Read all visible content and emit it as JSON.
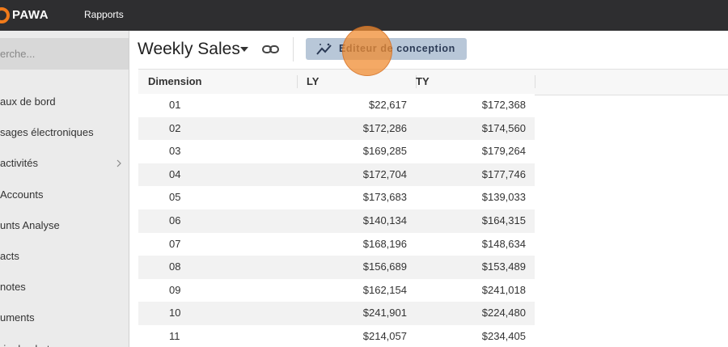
{
  "header": {
    "logo": "PAWA",
    "nav": "Rapports"
  },
  "sidebar": {
    "search": "erche...",
    "items": [
      "aux de bord",
      "sages électroniques",
      "activités",
      "Accounts",
      "unts Analyse",
      "acts",
      "notes",
      "uments",
      "rie de photos"
    ]
  },
  "toolbar": {
    "title": "Weekly Sales",
    "button": "Editeur de conception"
  },
  "table": {
    "columns": [
      "Dimension",
      "LY",
      "TY"
    ],
    "rows": [
      [
        "01",
        "$22,617",
        "$172,368"
      ],
      [
        "02",
        "$172,286",
        "$174,560"
      ],
      [
        "03",
        "$169,285",
        "$179,264"
      ],
      [
        "04",
        "$172,704",
        "$177,746"
      ],
      [
        "05",
        "$173,683",
        "$139,033"
      ],
      [
        "06",
        "$140,134",
        "$164,315"
      ],
      [
        "07",
        "$168,196",
        "$148,634"
      ],
      [
        "08",
        "$156,689",
        "$153,489"
      ],
      [
        "09",
        "$162,154",
        "$241,018"
      ],
      [
        "10",
        "$241,901",
        "$224,480"
      ],
      [
        "11",
        "$214,057",
        "$234,405"
      ]
    ]
  }
}
